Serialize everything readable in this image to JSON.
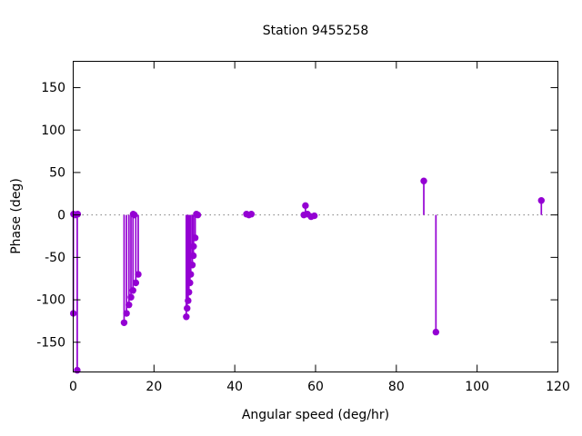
{
  "window": {
    "title": "Station 9455258"
  },
  "chart_data": {
    "type": "scatter",
    "style": "impulses-with-points",
    "title": "Station 9455258",
    "xlabel": "Angular speed (deg/hr)",
    "ylabel": "Phase (deg)",
    "xlim": [
      0,
      120
    ],
    "ylim": [
      -185,
      181
    ],
    "xticks": [
      0,
      20,
      40,
      60,
      80,
      100,
      120
    ],
    "yticks": [
      150,
      100,
      50,
      0,
      -50,
      -100,
      -150
    ],
    "zero_line": {
      "y": 0,
      "style": "dotted",
      "color": "#808080"
    },
    "legend": "none",
    "accent_color": "#9400d3",
    "border_color": "#000000",
    "points": [
      {
        "x": 0.04,
        "phase": -116
      },
      {
        "x": 0.08,
        "phase": 1
      },
      {
        "x": 0.55,
        "phase": 0
      },
      {
        "x": 1.0,
        "phase": -183
      },
      {
        "x": 1.1,
        "phase": 1
      },
      {
        "x": 12.6,
        "phase": -127
      },
      {
        "x": 13.2,
        "phase": -116
      },
      {
        "x": 13.8,
        "phase": -106
      },
      {
        "x": 14.3,
        "phase": -97
      },
      {
        "x": 14.8,
        "phase": -89
      },
      {
        "x": 14.85,
        "phase": 1
      },
      {
        "x": 15.15,
        "phase": 0
      },
      {
        "x": 15.5,
        "phase": -80
      },
      {
        "x": 16.1,
        "phase": -70
      },
      {
        "x": 28.0,
        "phase": -120
      },
      {
        "x": 28.2,
        "phase": -110
      },
      {
        "x": 28.45,
        "phase": -101
      },
      {
        "x": 28.65,
        "phase": -91
      },
      {
        "x": 28.9,
        "phase": -80
      },
      {
        "x": 29.1,
        "phase": -70
      },
      {
        "x": 29.5,
        "phase": -59
      },
      {
        "x": 29.75,
        "phase": -48
      },
      {
        "x": 29.8,
        "phase": -37
      },
      {
        "x": 30.2,
        "phase": -27
      },
      {
        "x": 30.5,
        "phase": 1
      },
      {
        "x": 30.85,
        "phase": 0
      },
      {
        "x": 42.9,
        "phase": 1
      },
      {
        "x": 43.5,
        "phase": 0
      },
      {
        "x": 44.1,
        "phase": 1
      },
      {
        "x": 57.1,
        "phase": 0
      },
      {
        "x": 57.5,
        "phase": 11
      },
      {
        "x": 58.0,
        "phase": 1
      },
      {
        "x": 58.9,
        "phase": -2
      },
      {
        "x": 59.7,
        "phase": -1
      },
      {
        "x": 86.8,
        "phase": 40
      },
      {
        "x": 89.8,
        "phase": -138
      },
      {
        "x": 115.9,
        "phase": 17
      }
    ]
  }
}
